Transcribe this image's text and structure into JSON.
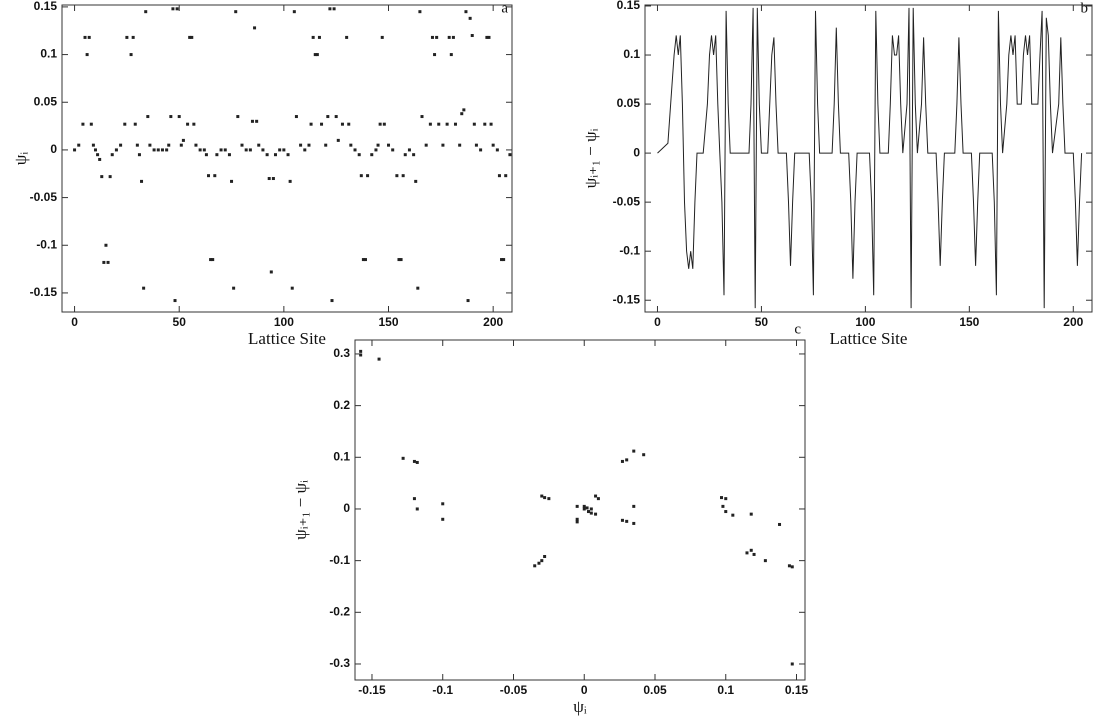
{
  "chart_data": [
    {
      "type": "scatter",
      "title": "a",
      "xlabel": "Lattice Site",
      "ylabel": "ψᵢ",
      "color": "#222",
      "xlim": [
        -6,
        209
      ],
      "ylim": [
        -0.17,
        0.152
      ],
      "xticks": [
        0,
        50,
        100,
        150,
        200
      ],
      "yticks": [
        -0.15,
        -0.1,
        -0.05,
        0,
        0.05,
        0.1,
        0.15
      ],
      "x": [
        0,
        2,
        4,
        5,
        6,
        7,
        8,
        9,
        10,
        11,
        12,
        13,
        14,
        15,
        16,
        17,
        18,
        20,
        22,
        24,
        25,
        27,
        28,
        29,
        30,
        31,
        32,
        33,
        34,
        35,
        36,
        38,
        40,
        42,
        44,
        45,
        46,
        47,
        48,
        49,
        50,
        51,
        52,
        54,
        55,
        56,
        57,
        58,
        60,
        62,
        63,
        64,
        65,
        66,
        67,
        68,
        70,
        72,
        74,
        75,
        76,
        77,
        78,
        80,
        82,
        84,
        85,
        86,
        87,
        88,
        90,
        92,
        93,
        94,
        95,
        96,
        98,
        100,
        102,
        103,
        104,
        105,
        106,
        108,
        110,
        112,
        113,
        114,
        115,
        116,
        117,
        118,
        120,
        121,
        122,
        123,
        124,
        125,
        126,
        128,
        130,
        131,
        132,
        134,
        136,
        137,
        138,
        139,
        140,
        142,
        144,
        145,
        146,
        147,
        148,
        150,
        152,
        154,
        155,
        156,
        157,
        158,
        160,
        162,
        163,
        164,
        165,
        166,
        168,
        170,
        171,
        172,
        173,
        174,
        176,
        178,
        179,
        180,
        181,
        182,
        184,
        185,
        186,
        187,
        188,
        189,
        190,
        191,
        192,
        194,
        196,
        197,
        198,
        199,
        200,
        202,
        203,
        204,
        205,
        206,
        208
      ],
      "values": [
        0,
        0.005,
        0.027,
        0.118,
        0.1,
        0.118,
        0.027,
        0.005,
        0,
        -0.005,
        -0.01,
        -0.028,
        -0.118,
        -0.1,
        -0.118,
        -0.028,
        -0.005,
        0,
        0.005,
        0.027,
        0.118,
        0.1,
        0.118,
        0.027,
        0.005,
        -0.005,
        -0.033,
        -0.145,
        0.145,
        0.035,
        0.005,
        0,
        0,
        0,
        0,
        0.005,
        0.035,
        0.148,
        -0.158,
        0.148,
        0.035,
        0.005,
        0.01,
        0.027,
        0.118,
        0.118,
        0.027,
        0.005,
        0,
        0,
        -0.005,
        -0.027,
        -0.115,
        -0.115,
        -0.027,
        -0.005,
        0,
        0,
        -0.005,
        -0.033,
        -0.145,
        0.145,
        0.035,
        0.005,
        0,
        0,
        0.03,
        0.128,
        0.03,
        0.005,
        0,
        -0.005,
        -0.03,
        -0.128,
        -0.03,
        -0.005,
        0,
        0,
        -0.005,
        -0.033,
        -0.145,
        0.145,
        0.035,
        0.005,
        0,
        0.005,
        0.027,
        0.118,
        0.1,
        0.1,
        0.118,
        0.027,
        0.005,
        0.035,
        0.148,
        -0.158,
        0.148,
        0.035,
        0.01,
        0.027,
        0.118,
        0.027,
        0.005,
        0,
        -0.005,
        -0.027,
        -0.115,
        -0.115,
        -0.027,
        -0.005,
        0,
        0.005,
        0.027,
        0.118,
        0.027,
        0.005,
        0,
        -0.027,
        -0.115,
        -0.115,
        -0.027,
        -0.005,
        0,
        -0.005,
        -0.033,
        -0.145,
        0.145,
        0.035,
        0.005,
        0.027,
        0.118,
        0.1,
        0.118,
        0.027,
        0.005,
        0.027,
        0.118,
        0.1,
        0.118,
        0.027,
        0.005,
        0.038,
        0.042,
        0.145,
        -0.158,
        0.138,
        0.12,
        0.027,
        0.005,
        0,
        0.027,
        0.118,
        0.118,
        0.027,
        0.005,
        0,
        -0.027,
        -0.115,
        -0.115,
        -0.027,
        -0.005
      ]
    },
    {
      "type": "line",
      "title": "b",
      "xlabel": "Lattice Site",
      "ylabel": "ψᵢ₊₁ − ψᵢ",
      "color": "#222",
      "xlim": [
        -6,
        209
      ],
      "ylim": [
        -0.162,
        0.151
      ],
      "xticks": [
        0,
        50,
        100,
        150,
        200
      ],
      "yticks": [
        -0.15,
        -0.1,
        -0.05,
        0,
        0.05,
        0.1,
        0.15
      ],
      "x": [
        0,
        5,
        8,
        9,
        10,
        11,
        12,
        13,
        14,
        15,
        16,
        17,
        18,
        19,
        22,
        24,
        25,
        26,
        27,
        28,
        29,
        30,
        31,
        32,
        33,
        34,
        35,
        44,
        45,
        46,
        47,
        48,
        49,
        50,
        53,
        55,
        56,
        57,
        58,
        62,
        63,
        64,
        65,
        66,
        73,
        74,
        75,
        76,
        77,
        78,
        84,
        85,
        86,
        87,
        88,
        92,
        93,
        94,
        95,
        96,
        102,
        103,
        104,
        105,
        106,
        107,
        111,
        112,
        113,
        114,
        115,
        116,
        117,
        118,
        120,
        121,
        122,
        123,
        124,
        125,
        127,
        128,
        129,
        130,
        134,
        135,
        136,
        137,
        138,
        143,
        144,
        145,
        146,
        147,
        151,
        152,
        153,
        154,
        155,
        161,
        162,
        163,
        164,
        165,
        166,
        168,
        169,
        170,
        171,
        172,
        173,
        175,
        176,
        177,
        178,
        179,
        180,
        183,
        184,
        185,
        186,
        187,
        188,
        189,
        190,
        193,
        194,
        195,
        196,
        200,
        201,
        202,
        203,
        204
      ],
      "values": [
        0,
        0.01,
        0.1,
        0.12,
        0.1,
        0.12,
        0.05,
        -0.05,
        -0.1,
        -0.118,
        -0.1,
        -0.118,
        -0.05,
        0,
        0,
        0.05,
        0.1,
        0.12,
        0.1,
        0.12,
        0.05,
        0,
        -0.05,
        -0.145,
        0.145,
        0.05,
        0,
        0,
        0.05,
        0.148,
        -0.158,
        0.148,
        0.05,
        0,
        0,
        0.1,
        0.118,
        0.05,
        0,
        0,
        -0.05,
        -0.115,
        -0.05,
        0,
        0,
        -0.05,
        -0.145,
        0.145,
        0.05,
        0,
        0,
        0.05,
        0.128,
        0.05,
        0,
        0,
        -0.05,
        -0.128,
        -0.05,
        0,
        0,
        -0.05,
        -0.145,
        0.145,
        0.05,
        0,
        0,
        0.05,
        0.12,
        0.1,
        0.1,
        0.12,
        0.05,
        0,
        0.05,
        0.148,
        -0.158,
        0.148,
        0.05,
        0,
        0.05,
        0.118,
        0.05,
        0,
        0,
        -0.05,
        -0.115,
        -0.05,
        0,
        0,
        0.05,
        0.118,
        0.05,
        0,
        0,
        -0.05,
        -0.115,
        -0.05,
        0,
        0,
        -0.05,
        -0.145,
        0.145,
        0.05,
        0,
        0.05,
        0.1,
        0.12,
        0.1,
        0.12,
        0.05,
        0.05,
        0.1,
        0.12,
        0.1,
        0.12,
        0.05,
        0.05,
        0.1,
        0.145,
        -0.158,
        0.138,
        0.12,
        0.05,
        0,
        0.05,
        0.118,
        0.05,
        0,
        0,
        -0.05,
        -0.115,
        -0.05,
        0
      ]
    },
    {
      "type": "scatter",
      "title": "c",
      "xlabel": "ψᵢ",
      "ylabel": "ψᵢ₊₁ − ψᵢ",
      "color": "#222",
      "xlim": [
        -0.162,
        0.156
      ],
      "ylim": [
        -0.331,
        0.327
      ],
      "xticks": [
        -0.15,
        -0.1,
        -0.05,
        0,
        0.05,
        0.1,
        0.15
      ],
      "yticks": [
        -0.3,
        -0.2,
        -0.1,
        0,
        0.1,
        0.2,
        0.3
      ],
      "x": [
        -0.158,
        -0.158,
        -0.145,
        -0.128,
        -0.12,
        -0.118,
        -0.12,
        -0.118,
        -0.1,
        -0.1,
        -0.035,
        -0.032,
        -0.03,
        -0.028,
        -0.03,
        -0.028,
        -0.025,
        -0.005,
        -0.005,
        -0.005,
        0,
        0.002,
        0.003,
        0,
        0.005,
        0.005,
        0.008,
        0.01,
        0.008,
        0.027,
        0.03,
        0.035,
        0.042,
        0.027,
        0.03,
        0.035,
        0.035,
        0.097,
        0.1,
        0.098,
        0.1,
        0.105,
        0.115,
        0.118,
        0.12,
        0.128,
        0.118,
        0.138,
        0.145,
        0.147,
        0.147
      ],
      "values": [
        0.305,
        0.298,
        0.29,
        0.098,
        0.092,
        0.09,
        0.02,
        0,
        0.01,
        -0.02,
        -0.11,
        -0.105,
        -0.1,
        -0.092,
        0.025,
        0.022,
        0.02,
        -0.025,
        -0.02,
        0.005,
        0,
        0.002,
        -0.005,
        0.005,
        0,
        -0.008,
        0.025,
        0.02,
        -0.01,
        0.092,
        0.095,
        0.112,
        0.105,
        -0.022,
        -0.024,
        -0.028,
        0.005,
        0.022,
        0.02,
        0.005,
        -0.005,
        -0.012,
        -0.085,
        -0.08,
        -0.088,
        -0.1,
        -0.01,
        -0.03,
        -0.11,
        -0.112,
        -0.3
      ]
    }
  ]
}
